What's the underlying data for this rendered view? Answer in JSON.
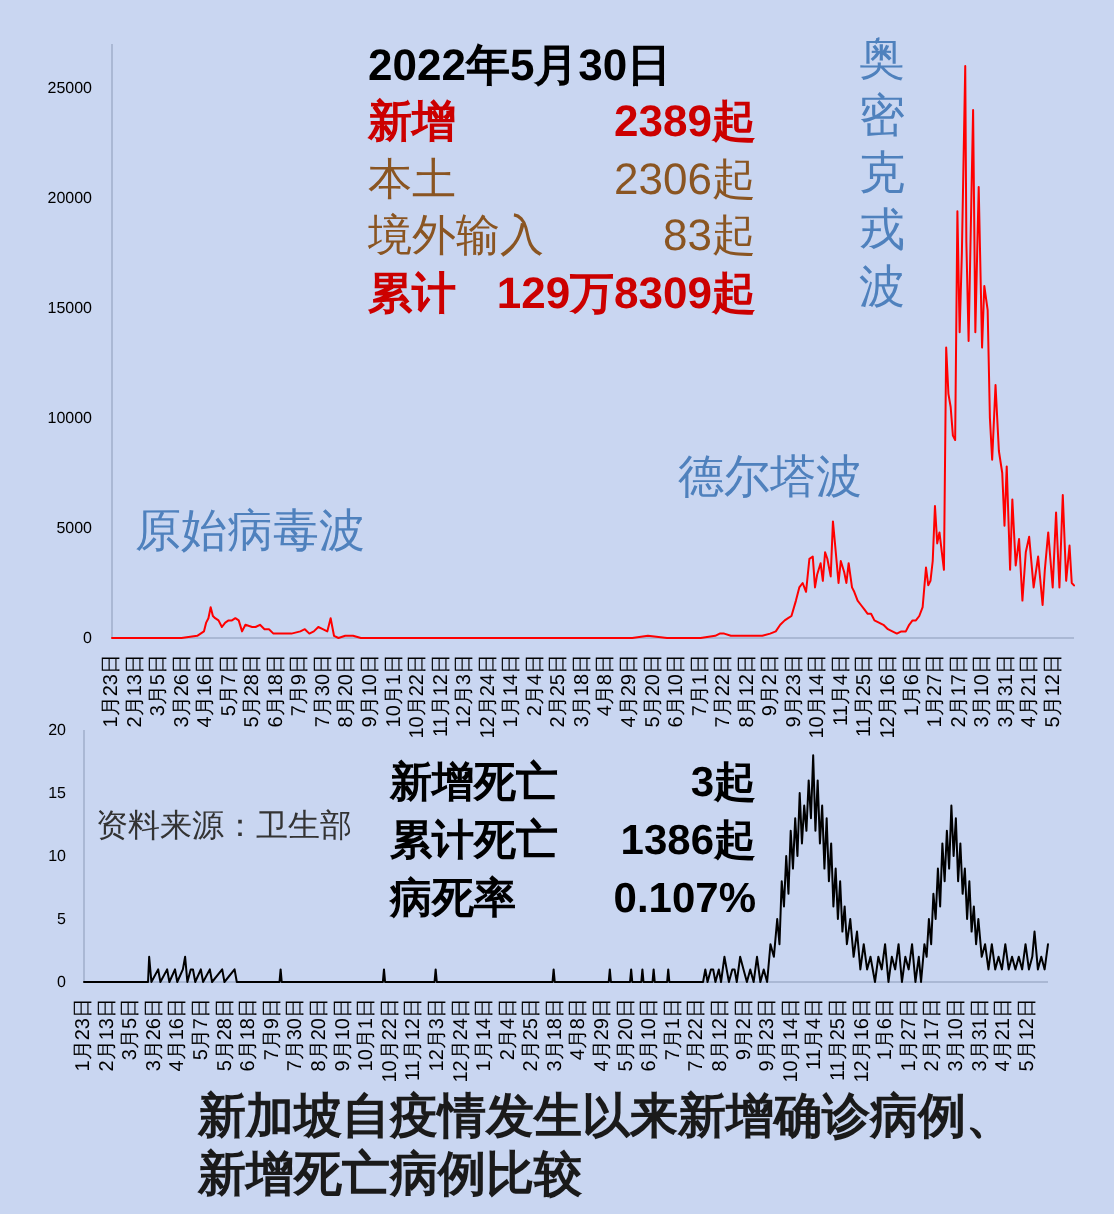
{
  "chart_data": [
    {
      "type": "line",
      "annotations": [
        "2022年5月30日",
        "新增",
        "2389起",
        "本土",
        "2306起",
        "境外输入",
        "83起",
        "累计",
        "129万8309起",
        "原始病毒波",
        "德尔塔波",
        "奥密克戎波"
      ],
      "x": [
        "2020-01-23",
        "2020-03-15",
        "2020-03-25",
        "2020-04-08",
        "2020-04-11",
        "2020-04-14",
        "2020-04-16",
        "2020-04-18",
        "2020-04-20",
        "2020-04-22",
        "2020-04-24",
        "2020-04-27",
        "2020-04-30",
        "2020-05-03",
        "2020-05-06",
        "2020-05-09",
        "2020-05-12",
        "2020-05-15",
        "2020-05-18",
        "2020-05-21",
        "2020-05-27",
        "2020-05-30",
        "2020-06-03",
        "2020-06-07",
        "2020-06-11",
        "2020-06-15",
        "2020-06-23",
        "2020-06-27",
        "2020-07-01",
        "2020-07-09",
        "2020-07-13",
        "2020-07-17",
        "2020-07-21",
        "2020-07-25",
        "2020-07-29",
        "2020-08-02",
        "2020-08-05",
        "2020-08-08",
        "2020-08-12",
        "2020-08-18",
        "2020-08-25",
        "2020-09-01",
        "2020-11-01",
        "2021-01-01",
        "2021-05-01",
        "2021-05-15",
        "2021-06-01",
        "2021-07-01",
        "2021-07-14",
        "2021-07-18",
        "2021-07-22",
        "2021-07-28",
        "2021-08-15",
        "2021-08-25",
        "2021-09-01",
        "2021-09-06",
        "2021-09-10",
        "2021-09-14",
        "2021-09-17",
        "2021-09-20",
        "2021-09-24",
        "2021-09-27",
        "2021-09-30",
        "2021-10-03",
        "2021-10-06",
        "2021-10-09",
        "2021-10-11",
        "2021-10-13",
        "2021-10-16",
        "2021-10-18",
        "2021-10-20",
        "2021-10-22",
        "2021-10-25",
        "2021-10-27",
        "2021-10-29",
        "2021-11-01",
        "2021-11-03",
        "2021-11-06",
        "2021-11-08",
        "2021-11-10",
        "2021-11-13",
        "2021-11-15",
        "2021-11-18",
        "2021-11-21",
        "2021-11-24",
        "2021-11-27",
        "2021-11-30",
        "2021-12-03",
        "2021-12-07",
        "2021-12-11",
        "2021-12-15",
        "2021-12-19",
        "2021-12-23",
        "2021-12-27",
        "2021-12-31",
        "2022-01-03",
        "2022-01-06",
        "2022-01-09",
        "2022-01-12",
        "2022-01-15",
        "2022-01-18",
        "2022-01-20",
        "2022-01-22",
        "2022-01-24",
        "2022-01-26",
        "2022-01-28",
        "2022-01-30",
        "2022-02-03",
        "2022-02-05",
        "2022-02-07",
        "2022-02-09",
        "2022-02-11",
        "2022-02-13",
        "2022-02-15",
        "2022-02-17",
        "2022-02-19",
        "2022-02-22",
        "2022-02-23",
        "2022-02-25",
        "2022-03-01",
        "2022-03-03",
        "2022-03-06",
        "2022-03-09",
        "2022-03-11",
        "2022-03-14",
        "2022-03-16",
        "2022-03-18",
        "2022-03-21",
        "2022-03-24",
        "2022-03-27",
        "2022-03-29",
        "2022-03-31",
        "2022-04-03",
        "2022-04-05",
        "2022-04-08",
        "2022-04-11",
        "2022-04-14",
        "2022-04-17",
        "2022-04-20",
        "2022-04-24",
        "2022-04-28",
        "2022-05-02",
        "2022-05-04",
        "2022-05-07",
        "2022-05-11",
        "2022-05-14",
        "2022-05-17",
        "2022-05-20",
        "2022-05-23",
        "2022-05-26",
        "2022-05-28",
        "2022-05-30"
      ],
      "series": [
        {
          "color": "#ff0000",
          "values": [
            0,
            0,
            0,
            100,
            200,
            300,
            700,
            900,
            1400,
            1000,
            900,
            800,
            500,
            700,
            800,
            800,
            900,
            800,
            300,
            600,
            500,
            500,
            600,
            400,
            400,
            200,
            200,
            200,
            200,
            300,
            400,
            200,
            300,
            500,
            400,
            300,
            900,
            100,
            0,
            100,
            100,
            0,
            0,
            0,
            0,
            100,
            0,
            0,
            100,
            200,
            200,
            100,
            100,
            100,
            200,
            300,
            600,
            800,
            900,
            1000,
            1700,
            2300,
            2500,
            2100,
            3600,
            3700,
            2300,
            2900,
            3400,
            2600,
            3900,
            3600,
            2800,
            5300,
            4200,
            2500,
            3500,
            3000,
            2500,
            3400,
            2300,
            2100,
            1700,
            1500,
            1300,
            1100,
            1100,
            800,
            700,
            600,
            400,
            300,
            200,
            300,
            300,
            600,
            800,
            800,
            1000,
            1400,
            3200,
            2400,
            2600,
            3500,
            6000,
            4300,
            4800,
            3100,
            13200,
            11100,
            10500,
            9200,
            9000,
            19400,
            13900,
            17500,
            26000,
            18000,
            13500,
            24000,
            13900,
            20500,
            13200,
            16000,
            14900,
            10000,
            8100,
            11500,
            8500,
            7500,
            5100,
            7800,
            3100,
            6300,
            3300,
            4500,
            1700,
            3900,
            4600,
            2300,
            3700,
            1500,
            3100,
            4800,
            2300,
            5700,
            2300,
            6500,
            2600,
            4200,
            2500,
            2389
          ]
        }
      ],
      "xlim": [
        "2020-01-23",
        "2022-05-30"
      ],
      "ylim": [
        0,
        27000
      ],
      "xticks": [
        {
          "value": "2020-01-23",
          "label": "1月23日"
        },
        {
          "value": "2020-02-13",
          "label": "2月13日"
        },
        {
          "value": "2020-03-05",
          "label": "3月5日"
        },
        {
          "value": "2020-03-26",
          "label": "3月26日"
        },
        {
          "value": "2020-04-16",
          "label": "4月16日"
        },
        {
          "value": "2020-05-07",
          "label": "5月7日"
        },
        {
          "value": "2020-05-28",
          "label": "5月28日"
        },
        {
          "value": "2020-06-18",
          "label": "6月18日"
        },
        {
          "value": "2020-07-09",
          "label": "7月9日"
        },
        {
          "value": "2020-07-30",
          "label": "7月30日"
        },
        {
          "value": "2020-08-20",
          "label": "8月20日"
        },
        {
          "value": "2020-09-10",
          "label": "9月10日"
        },
        {
          "value": "2020-10-01",
          "label": "10月1日"
        },
        {
          "value": "2020-10-22",
          "label": "10月22日"
        },
        {
          "value": "2020-11-12",
          "label": "11月12日"
        },
        {
          "value": "2020-12-03",
          "label": "12月3日"
        },
        {
          "value": "2020-12-24",
          "label": "12月24日"
        },
        {
          "value": "2021-01-14",
          "label": "1月14日"
        },
        {
          "value": "2021-02-04",
          "label": "2月4日"
        },
        {
          "value": "2021-02-25",
          "label": "2月25日"
        },
        {
          "value": "2021-03-18",
          "label": "3月18日"
        },
        {
          "value": "2021-04-08",
          "label": "4月8日"
        },
        {
          "value": "2021-04-29",
          "label": "4月29日"
        },
        {
          "value": "2021-05-20",
          "label": "5月20日"
        },
        {
          "value": "2021-06-10",
          "label": "6月10日"
        },
        {
          "value": "2021-07-01",
          "label": "7月1日"
        },
        {
          "value": "2021-07-22",
          "label": "7月22日"
        },
        {
          "value": "2021-08-12",
          "label": "8月12日"
        },
        {
          "value": "2021-09-02",
          "label": "9月2日"
        },
        {
          "value": "2021-09-23",
          "label": "9月23日"
        },
        {
          "value": "2021-10-14",
          "label": "10月14日"
        },
        {
          "value": "2021-11-04",
          "label": "11月4日"
        },
        {
          "value": "2021-11-25",
          "label": "11月25日"
        },
        {
          "value": "2021-12-16",
          "label": "12月16日"
        },
        {
          "value": "2022-01-06",
          "label": "1月6日"
        },
        {
          "value": "2022-01-27",
          "label": "1月27日"
        },
        {
          "value": "2022-02-17",
          "label": "2月17日"
        },
        {
          "value": "2022-03-10",
          "label": "3月10日"
        },
        {
          "value": "2022-03-31",
          "label": "3月31日"
        },
        {
          "value": "2022-04-21",
          "label": "4月21日"
        },
        {
          "value": "2022-05-12",
          "label": "5月12日"
        }
      ],
      "yticks": [
        0,
        5000,
        10000,
        15000,
        20000,
        25000
      ]
    },
    {
      "type": "line",
      "title": "新加坡自疫情发生以来新增确诊病例、新增死亡病例比较",
      "annotations": [
        "资料来源：卫生部",
        "新增死亡",
        "3起",
        "累计死亡",
        "1386起",
        "病死率",
        "0.107%"
      ],
      "x": [
        "2020-01-23",
        "2020-03-20",
        "2020-03-21",
        "2020-03-23",
        "2020-03-29",
        "2020-03-31",
        "2020-04-06",
        "2020-04-08",
        "2020-04-13",
        "2020-04-15",
        "2020-04-20",
        "2020-04-22",
        "2020-04-24",
        "2020-04-27",
        "2020-04-29",
        "2020-05-01",
        "2020-05-06",
        "2020-05-08",
        "2020-05-14",
        "2020-05-16",
        "2020-05-25",
        "2020-05-27",
        "2020-06-05",
        "2020-06-07",
        "2020-07-15",
        "2020-07-16",
        "2020-07-17",
        "2020-10-15",
        "2020-10-16",
        "2020-10-17",
        "2020-11-30",
        "2020-12-01",
        "2020-12-02",
        "2021-03-15",
        "2021-03-16",
        "2021-03-17",
        "2021-05-04",
        "2021-05-05",
        "2021-05-06",
        "2021-05-23",
        "2021-05-24",
        "2021-05-25",
        "2021-06-02",
        "2021-06-03",
        "2021-06-04",
        "2021-06-12",
        "2021-06-13",
        "2021-06-14",
        "2021-06-25",
        "2021-06-26",
        "2021-06-27",
        "2021-07-27",
        "2021-07-29",
        "2021-07-31",
        "2021-08-03",
        "2021-08-05",
        "2021-08-07",
        "2021-08-10",
        "2021-08-12",
        "2021-08-15",
        "2021-08-17",
        "2021-08-19",
        "2021-08-22",
        "2021-08-24",
        "2021-08-26",
        "2021-08-29",
        "2021-09-01",
        "2021-09-04",
        "2021-09-07",
        "2021-09-10",
        "2021-09-13",
        "2021-09-16",
        "2021-09-19",
        "2021-09-22",
        "2021-09-25",
        "2021-09-28",
        "2021-10-01",
        "2021-10-03",
        "2021-10-05",
        "2021-10-07",
        "2021-10-09",
        "2021-10-11",
        "2021-10-13",
        "2021-10-15",
        "2021-10-17",
        "2021-10-19",
        "2021-10-21",
        "2021-10-23",
        "2021-10-25",
        "2021-10-27",
        "2021-10-29",
        "2021-10-31",
        "2021-11-02",
        "2021-11-04",
        "2021-11-06",
        "2021-11-08",
        "2021-11-10",
        "2021-11-12",
        "2021-11-14",
        "2021-11-16",
        "2021-11-18",
        "2021-11-20",
        "2021-11-22",
        "2021-11-24",
        "2021-11-26",
        "2021-11-28",
        "2021-11-30",
        "2021-12-02",
        "2021-12-05",
        "2021-12-08",
        "2021-12-11",
        "2021-12-14",
        "2021-12-17",
        "2021-12-20",
        "2021-12-23",
        "2021-12-27",
        "2021-12-30",
        "2022-01-02",
        "2022-01-05",
        "2022-01-08",
        "2022-01-11",
        "2022-01-14",
        "2022-01-17",
        "2022-01-20",
        "2022-01-23",
        "2022-01-26",
        "2022-01-29",
        "2022-02-01",
        "2022-02-04",
        "2022-02-06",
        "2022-02-09",
        "2022-02-11",
        "2022-02-13",
        "2022-02-15",
        "2022-02-17",
        "2022-02-19",
        "2022-02-21",
        "2022-02-23",
        "2022-02-25",
        "2022-02-27",
        "2022-03-01",
        "2022-03-03",
        "2022-03-05",
        "2022-03-07",
        "2022-03-09",
        "2022-03-11",
        "2022-03-13",
        "2022-03-15",
        "2022-03-17",
        "2022-03-19",
        "2022-03-21",
        "2022-03-23",
        "2022-03-25",
        "2022-03-27",
        "2022-03-29",
        "2022-04-01",
        "2022-04-04",
        "2022-04-07",
        "2022-04-10",
        "2022-04-13",
        "2022-04-16",
        "2022-04-19",
        "2022-04-22",
        "2022-04-25",
        "2022-04-28",
        "2022-05-01",
        "2022-05-04",
        "2022-05-07",
        "2022-05-10",
        "2022-05-13",
        "2022-05-16",
        "2022-05-18",
        "2022-05-21",
        "2022-05-24",
        "2022-05-27",
        "2022-05-30"
      ],
      "series": [
        {
          "color": "#000000",
          "values": [
            0,
            0,
            2,
            0,
            1,
            0,
            1,
            0,
            1,
            0,
            1,
            2,
            0,
            1,
            1,
            0,
            1,
            0,
            1,
            0,
            1,
            0,
            1,
            0,
            0,
            1,
            0,
            0,
            1,
            0,
            0,
            1,
            0,
            0,
            1,
            0,
            0,
            1,
            0,
            0,
            1,
            0,
            0,
            1,
            0,
            0,
            1,
            0,
            0,
            1,
            0,
            0,
            1,
            0,
            1,
            1,
            0,
            1,
            0,
            2,
            1,
            0,
            1,
            1,
            0,
            2,
            1,
            0,
            1,
            0,
            2,
            0,
            1,
            0,
            3,
            2,
            5,
            3,
            8,
            6,
            10,
            7,
            12,
            9,
            13,
            10,
            15,
            11,
            14,
            12,
            16,
            13,
            18,
            12,
            16,
            11,
            14,
            9,
            13,
            8,
            11,
            6,
            9,
            5,
            8,
            4,
            6,
            3,
            5,
            2,
            4,
            1,
            3,
            1,
            2,
            0,
            2,
            1,
            3,
            0,
            2,
            1,
            3,
            0,
            2,
            1,
            3,
            0,
            2,
            0,
            3,
            2,
            5,
            3,
            7,
            5,
            9,
            6,
            11,
            8,
            12,
            9,
            14,
            10,
            13,
            8,
            11,
            7,
            9,
            5,
            8,
            4,
            6,
            3,
            5,
            2,
            3,
            1,
            3,
            1,
            2,
            1,
            3,
            1,
            2,
            1,
            2,
            1,
            3,
            1,
            2,
            4,
            1,
            2,
            1,
            3
          ]
        }
      ],
      "xlim": [
        "2020-01-23",
        "2022-05-30"
      ],
      "ylim": [
        0,
        20
      ],
      "xticks": [
        {
          "value": "2020-01-23",
          "label": "1月23日"
        },
        {
          "value": "2020-02-13",
          "label": "2月13日"
        },
        {
          "value": "2020-03-05",
          "label": "3月5日"
        },
        {
          "value": "2020-03-26",
          "label": "3月26日"
        },
        {
          "value": "2020-04-16",
          "label": "4月16日"
        },
        {
          "value": "2020-05-07",
          "label": "5月7日"
        },
        {
          "value": "2020-05-28",
          "label": "5月28日"
        },
        {
          "value": "2020-06-18",
          "label": "6月18日"
        },
        {
          "value": "2020-07-09",
          "label": "7月9日"
        },
        {
          "value": "2020-07-30",
          "label": "7月30日"
        },
        {
          "value": "2020-08-20",
          "label": "8月20日"
        },
        {
          "value": "2020-09-10",
          "label": "9月10日"
        },
        {
          "value": "2020-10-01",
          "label": "10月1日"
        },
        {
          "value": "2020-10-22",
          "label": "10月22日"
        },
        {
          "value": "2020-11-12",
          "label": "11月12日"
        },
        {
          "value": "2020-12-03",
          "label": "12月3日"
        },
        {
          "value": "2020-12-24",
          "label": "12月24日"
        },
        {
          "value": "2021-01-14",
          "label": "1月14日"
        },
        {
          "value": "2021-02-04",
          "label": "2月4日"
        },
        {
          "value": "2021-02-25",
          "label": "2月25日"
        },
        {
          "value": "2021-03-18",
          "label": "3月18日"
        },
        {
          "value": "2021-04-08",
          "label": "4月8日"
        },
        {
          "value": "2021-04-29",
          "label": "4月29日"
        },
        {
          "value": "2021-05-20",
          "label": "5月20日"
        },
        {
          "value": "2021-06-10",
          "label": "6月10日"
        },
        {
          "value": "2021-07-01",
          "label": "7月1日"
        },
        {
          "value": "2021-07-22",
          "label": "7月22日"
        },
        {
          "value": "2021-08-12",
          "label": "8月12日"
        },
        {
          "value": "2021-09-02",
          "label": "9月2日"
        },
        {
          "value": "2021-09-23",
          "label": "9月23日"
        },
        {
          "value": "2021-10-14",
          "label": "10月14日"
        },
        {
          "value": "2021-11-04",
          "label": "11月4日"
        },
        {
          "value": "2021-11-25",
          "label": "11月25日"
        },
        {
          "value": "2021-12-16",
          "label": "12月16日"
        },
        {
          "value": "2022-01-06",
          "label": "1月6日"
        },
        {
          "value": "2022-01-27",
          "label": "1月27日"
        },
        {
          "value": "2022-02-17",
          "label": "2月17日"
        },
        {
          "value": "2022-03-10",
          "label": "3月10日"
        },
        {
          "value": "2022-03-31",
          "label": "3月31日"
        },
        {
          "value": "2022-04-21",
          "label": "4月21日"
        },
        {
          "value": "2022-05-12",
          "label": "5月12日"
        }
      ],
      "yticks": [
        0,
        5,
        10,
        15,
        20
      ]
    }
  ]
}
